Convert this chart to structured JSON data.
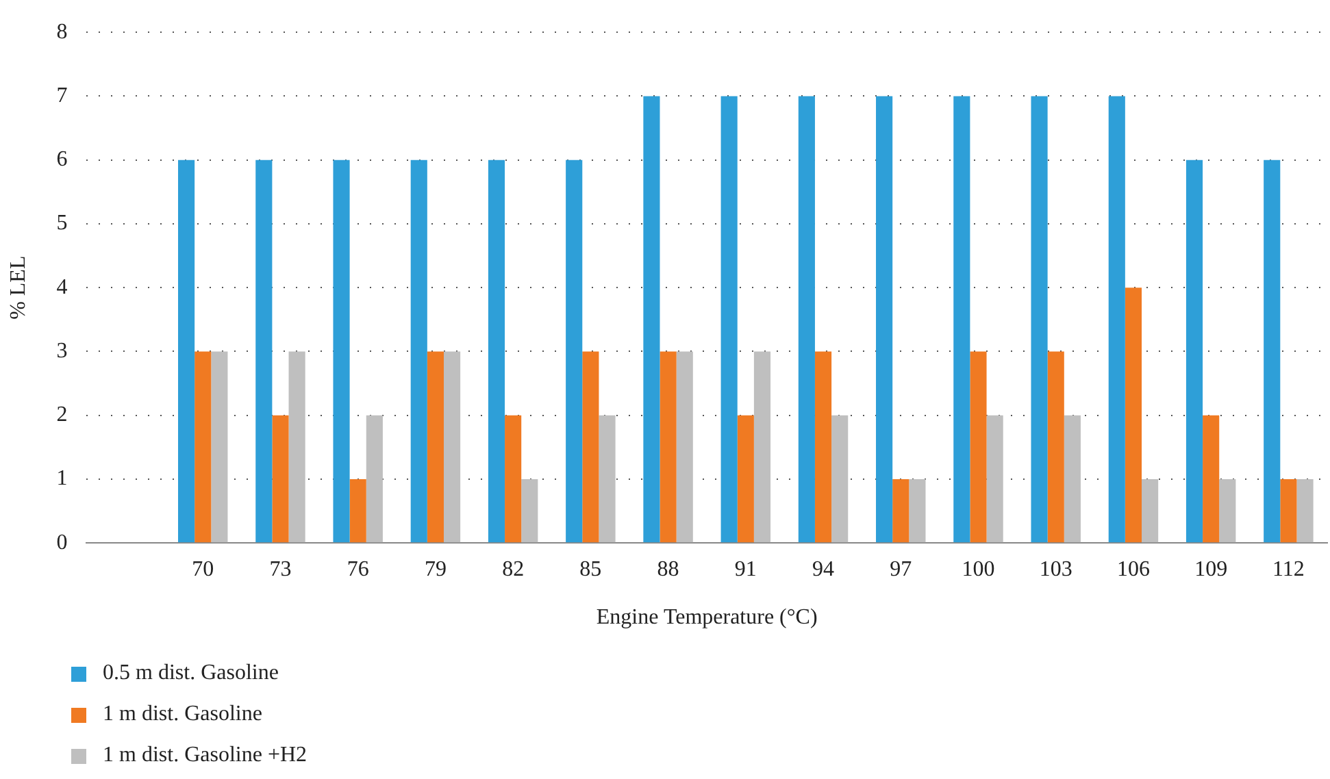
{
  "chart_data": {
    "type": "bar",
    "xlabel": "Engine Temperature (°C)",
    "ylabel": "% LEL",
    "categories": [
      null,
      "70",
      "73",
      "76",
      "79",
      "82",
      "85",
      "88",
      "91",
      "94",
      "97",
      "100",
      "103",
      "106",
      "109",
      "112"
    ],
    "series": [
      {
        "name": "0.5 m dist. Gasoline",
        "color": "#2e9fd8",
        "values": [
          null,
          6,
          6,
          6,
          6,
          6,
          6,
          7,
          7,
          7,
          7,
          7,
          7,
          7,
          6,
          6
        ]
      },
      {
        "name": "1 m dist. Gasoline",
        "color": "#f07a22",
        "values": [
          null,
          3,
          2,
          1,
          3,
          2,
          3,
          3,
          2,
          3,
          1,
          3,
          3,
          4,
          2,
          1
        ]
      },
      {
        "name": "1 m dist. Gasoline +H2",
        "color": "#bfbfbf",
        "values": [
          null,
          3,
          3,
          2,
          3,
          1,
          2,
          3,
          3,
          2,
          1,
          2,
          2,
          1,
          1,
          1
        ]
      }
    ],
    "ylim": [
      0,
      8
    ],
    "yticks": [
      0,
      1,
      2,
      3,
      4,
      5,
      6,
      7,
      8
    ],
    "grid": "y",
    "legend": "bottom left"
  }
}
